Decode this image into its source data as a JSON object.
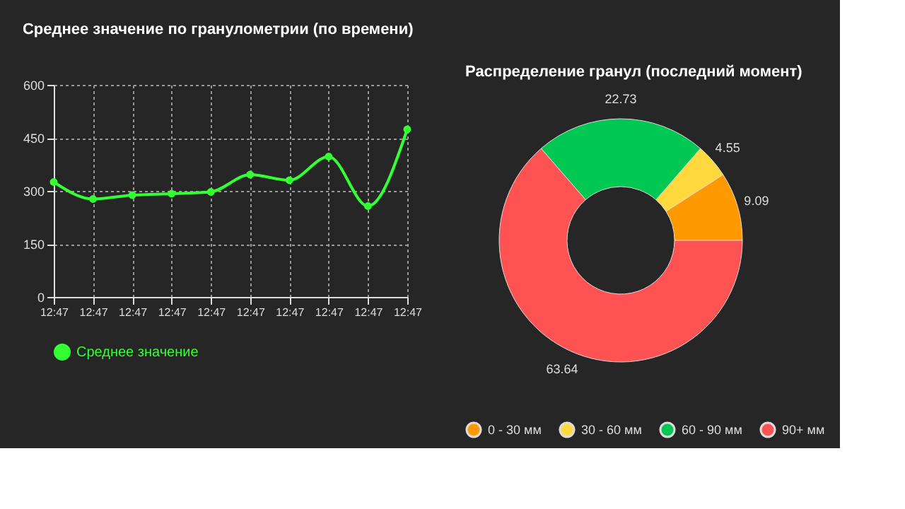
{
  "chart_data": [
    {
      "type": "line",
      "title": "Среднее значение по гранулометрии (по времени)",
      "categories": [
        "12:47",
        "12:47",
        "12:47",
        "12:47",
        "12:47",
        "12:47",
        "12:47",
        "12:47",
        "12:47",
        "12:47"
      ],
      "series": [
        {
          "name": "Среднее значение",
          "color": "#33ff33",
          "values": [
            325,
            277,
            288,
            292,
            297,
            346,
            330,
            397,
            257,
            474
          ]
        }
      ],
      "ylim": [
        0,
        600
      ],
      "yticks": [
        0,
        150,
        300,
        450,
        600
      ],
      "grid": true,
      "legend": "bottom",
      "marker": "circle",
      "line_style": "solid"
    },
    {
      "type": "donut",
      "title": "Распределение гранул (последний момент)",
      "categories": [
        "0 - 30 мм",
        "30 - 60 мм",
        "60 - 90 мм",
        "90+ мм"
      ],
      "values": [
        9.09,
        4.55,
        22.73,
        63.64
      ],
      "colors": [
        "#ff9900",
        "#ffd93d",
        "#00c853",
        "#ff5252"
      ],
      "data_labels": true,
      "legend": "bottom"
    }
  ]
}
